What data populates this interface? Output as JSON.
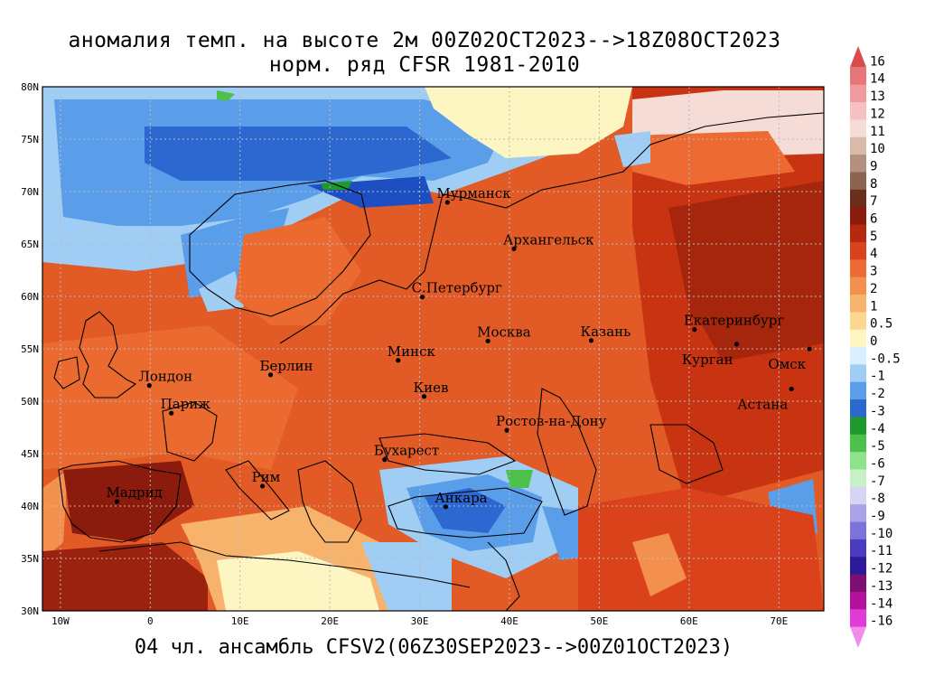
{
  "title_line1": "аномалия темп. на высоте 2м 00Z02OCT2023-->18Z08OCT2023",
  "title_line2": "норм. ряд CFSR 1981-2010",
  "footer": "04 чл. ансамбль CFSV2(06Z30SEP2023-->00Z01OCT2023)",
  "map": {
    "lon_range": [
      -12,
      75
    ],
    "lat_range": [
      30,
      80
    ],
    "lat_ticks": [
      "30N",
      "35N",
      "40N",
      "45N",
      "50N",
      "55N",
      "60N",
      "65N",
      "70N",
      "75N",
      "80N"
    ],
    "lon_ticks": [
      "10W",
      "0",
      "10E",
      "20E",
      "30E",
      "40E",
      "50E",
      "60E",
      "70E"
    ],
    "cities": [
      {
        "name": "Мурманск",
        "lon": 33.1,
        "lat": 68.97
      },
      {
        "name": "Архангельск",
        "lon": 40.5,
        "lat": 64.54
      },
      {
        "name": "С.Петербург",
        "lon": 30.3,
        "lat": 59.94
      },
      {
        "name": "Москва",
        "lon": 37.6,
        "lat": 55.75
      },
      {
        "name": "Казань",
        "lon": 49.1,
        "lat": 55.79
      },
      {
        "name": "Екатеринбург",
        "lon": 60.6,
        "lat": 56.84
      },
      {
        "name": "Курган",
        "lon": 65.3,
        "lat": 55.45
      },
      {
        "name": "Омск",
        "lon": 73.4,
        "lat": 54.99
      },
      {
        "name": "Астана",
        "lon": 71.4,
        "lat": 51.17
      },
      {
        "name": "Минск",
        "lon": 27.6,
        "lat": 53.9
      },
      {
        "name": "Киев",
        "lon": 30.5,
        "lat": 50.45
      },
      {
        "name": "Ростов-на-Дону",
        "lon": 39.7,
        "lat": 47.23
      },
      {
        "name": "Бухарест",
        "lon": 26.1,
        "lat": 44.43
      },
      {
        "name": "Анкара",
        "lon": 32.9,
        "lat": 39.93
      },
      {
        "name": "Берлин",
        "lon": 13.4,
        "lat": 52.52
      },
      {
        "name": "Лондон",
        "lon": -0.1,
        "lat": 51.5
      },
      {
        "name": "Париж",
        "lon": 2.35,
        "lat": 48.86
      },
      {
        "name": "Рим",
        "lon": 12.5,
        "lat": 41.9
      },
      {
        "name": "Мадрид",
        "lon": -3.7,
        "lat": 40.42
      }
    ]
  },
  "colorbar": {
    "unit": "",
    "levels": [
      "16",
      "14",
      "13",
      "12",
      "11",
      "10",
      "9",
      "8",
      "7",
      "6",
      "5",
      "4",
      "3",
      "2",
      "1",
      "0.5",
      "0",
      "-0.5",
      "-1",
      "-2",
      "-3",
      "-4",
      "-5",
      "-6",
      "-7",
      "-8",
      "-9",
      "-10",
      "-11",
      "-12",
      "-13",
      "-14",
      "-16"
    ],
    "colors": [
      "#d94c4c",
      "#e8757a",
      "#f19aa0",
      "#f7c0c2",
      "#f6dcd6",
      "#d9b9a8",
      "#b59081",
      "#8d6352",
      "#6a2f1c",
      "#8b1b0c",
      "#b8280e",
      "#d9421a",
      "#ed6a32",
      "#f3904e",
      "#f7b36c",
      "#fcd790",
      "#fdf6c2",
      "#d9efff",
      "#9fcdf4",
      "#5a9eea",
      "#2d68d1",
      "#1d9a2b",
      "#4cc04a",
      "#8ee28c",
      "#c8f0c6",
      "#d7d4f6",
      "#a9a3ea",
      "#7b72da",
      "#4a3bc0",
      "#2c1a9a",
      "#7d0f72",
      "#b4129c",
      "#e23ad6",
      "#f08cec"
    ]
  }
}
